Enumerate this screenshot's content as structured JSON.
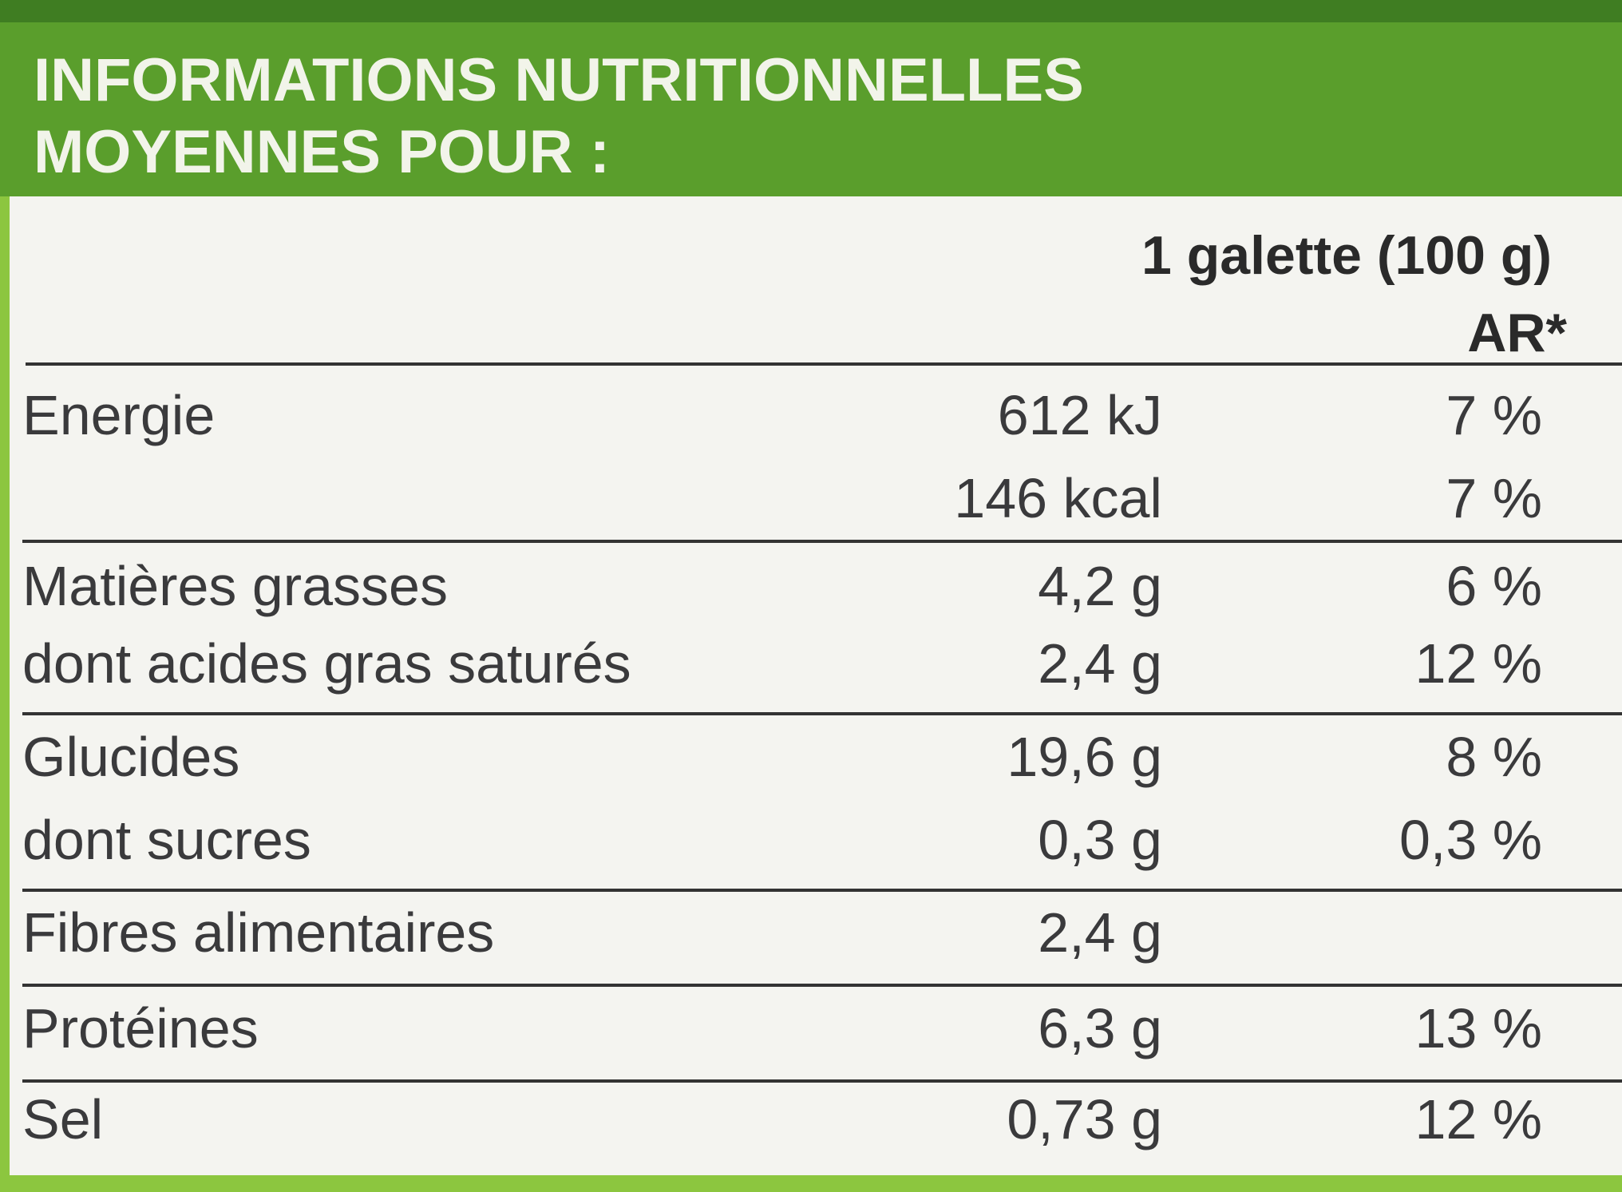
{
  "header": {
    "title_line1": "INFORMATIONS NUTRITIONNELLES",
    "title_line2": "MOYENNES POUR :"
  },
  "table": {
    "columns": [
      "1 galette (100 g)",
      "AR*"
    ],
    "groups": [
      {
        "rows": [
          {
            "label": "Energie",
            "amount": "612 kJ",
            "ar": "7 %"
          },
          {
            "amount": "146 kcal",
            "ar": "7 %"
          }
        ]
      },
      {
        "rows": [
          {
            "label": "Matières grasses",
            "amount": "4,2 g",
            "ar": "6 %"
          },
          {
            "label": "dont acides gras saturés",
            "amount": "2,4 g",
            "ar": "12 %"
          }
        ]
      },
      {
        "rows": [
          {
            "label": "Glucides",
            "amount": "19,6 g",
            "ar": "8 %"
          },
          {
            "label": "dont sucres",
            "amount": "0,3 g",
            "ar": "0,3 %"
          }
        ]
      },
      {
        "rows": [
          {
            "label": "Fibres alimentaires",
            "amount": "2,4 g"
          }
        ]
      },
      {
        "rows": [
          {
            "label": "Protéines",
            "amount": "6,3 g",
            "ar": "13 %"
          }
        ]
      },
      {
        "rows": [
          {
            "label": "Sel",
            "amount": "0,73 g",
            "ar": "12 %"
          }
        ]
      }
    ]
  }
}
